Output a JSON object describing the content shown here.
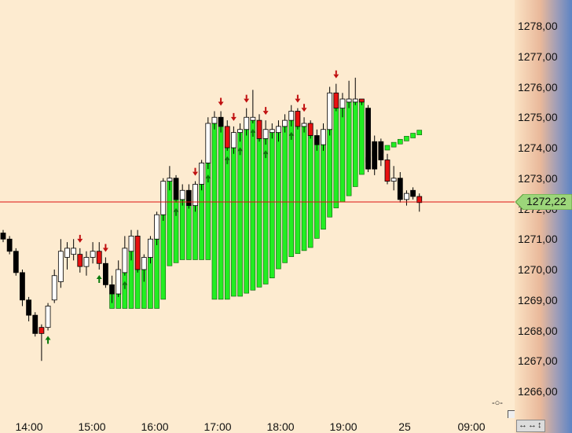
{
  "chart_data": {
    "type": "candlestick",
    "y_axis": {
      "ticks": [
        "1266,00",
        "1267,00",
        "1268,00",
        "1269,00",
        "1270,00",
        "1271,00",
        "1272,00",
        "1273,00",
        "1274,00",
        "1275,00",
        "1276,00",
        "1277,00",
        "1278,00"
      ],
      "range": [
        1265.4,
        1278.7
      ],
      "position": "right"
    },
    "x_axis": {
      "ticks": [
        "14:00",
        "15:00",
        "16:00",
        "17:00",
        "18:00",
        "19:00",
        "25",
        "09:00"
      ]
    },
    "last_price": {
      "label": "1272,22",
      "value": 1272.22
    },
    "colors": {
      "bull": "#ffffff",
      "bear": "#000000",
      "reversal": "#e81010",
      "trail_bar": "#22ee22",
      "arrow_up": "#0a7a0a",
      "arrow_down": "#c01010",
      "price_line": "#dd1111"
    },
    "candles": [
      {
        "o": 1271.2,
        "h": 1271.3,
        "l": 1270.9,
        "c": 1271.0,
        "t": "bear"
      },
      {
        "o": 1271.0,
        "h": 1271.1,
        "l": 1270.5,
        "c": 1270.6,
        "t": "bear"
      },
      {
        "o": 1270.6,
        "h": 1270.7,
        "l": 1269.8,
        "c": 1269.9,
        "t": "bear"
      },
      {
        "o": 1269.9,
        "h": 1270.0,
        "l": 1268.8,
        "c": 1269.0,
        "t": "bear"
      },
      {
        "o": 1269.0,
        "h": 1269.1,
        "l": 1268.3,
        "c": 1268.5,
        "t": "bear"
      },
      {
        "o": 1268.5,
        "h": 1268.6,
        "l": 1267.8,
        "c": 1267.9,
        "t": "bear"
      },
      {
        "o": 1267.9,
        "h": 1268.2,
        "l": 1267.0,
        "c": 1268.1,
        "t": "reversal"
      },
      {
        "o": 1268.1,
        "h": 1268.9,
        "l": 1268.0,
        "c": 1268.8,
        "t": "bull"
      },
      {
        "o": 1269.0,
        "h": 1270.0,
        "l": 1268.9,
        "c": 1269.8,
        "t": "bull"
      },
      {
        "o": 1269.6,
        "h": 1271.0,
        "l": 1269.4,
        "c": 1270.6,
        "t": "bull"
      },
      {
        "o": 1270.4,
        "h": 1270.9,
        "l": 1270.0,
        "c": 1270.7,
        "t": "bull"
      },
      {
        "o": 1270.7,
        "h": 1271.0,
        "l": 1270.3,
        "c": 1270.5,
        "t": "bull"
      },
      {
        "o": 1270.5,
        "h": 1270.7,
        "l": 1269.9,
        "c": 1270.1,
        "t": "reversal"
      },
      {
        "o": 1270.1,
        "h": 1270.6,
        "l": 1269.8,
        "c": 1270.4,
        "t": "bull"
      },
      {
        "o": 1270.4,
        "h": 1270.9,
        "l": 1270.2,
        "c": 1270.6,
        "t": "bull"
      },
      {
        "o": 1270.6,
        "h": 1270.9,
        "l": 1270.0,
        "c": 1270.2,
        "t": "reversal"
      },
      {
        "o": 1270.2,
        "h": 1270.4,
        "l": 1269.4,
        "c": 1269.5,
        "t": "bear"
      },
      {
        "o": 1269.5,
        "h": 1269.8,
        "l": 1268.9,
        "c": 1269.2,
        "t": "bear"
      },
      {
        "o": 1269.2,
        "h": 1270.3,
        "l": 1269.1,
        "c": 1270.0,
        "t": "bull"
      },
      {
        "o": 1269.9,
        "h": 1271.1,
        "l": 1269.8,
        "c": 1270.7,
        "t": "bull"
      },
      {
        "o": 1270.6,
        "h": 1271.3,
        "l": 1270.3,
        "c": 1271.1,
        "t": "bull"
      },
      {
        "o": 1271.1,
        "h": 1271.3,
        "l": 1269.9,
        "c": 1270.0,
        "t": "reversal"
      },
      {
        "o": 1270.0,
        "h": 1270.5,
        "l": 1269.6,
        "c": 1270.4,
        "t": "bull"
      },
      {
        "o": 1270.4,
        "h": 1271.1,
        "l": 1270.2,
        "c": 1271.0,
        "t": "bull"
      },
      {
        "o": 1271.0,
        "h": 1271.9,
        "l": 1270.8,
        "c": 1271.8,
        "t": "bull"
      },
      {
        "o": 1271.8,
        "h": 1273.0,
        "l": 1271.6,
        "c": 1272.9,
        "t": "bull"
      },
      {
        "o": 1272.9,
        "h": 1273.4,
        "l": 1272.6,
        "c": 1273.0,
        "t": "bull"
      },
      {
        "o": 1273.0,
        "h": 1273.1,
        "l": 1272.2,
        "c": 1272.3,
        "t": "bear"
      },
      {
        "o": 1272.3,
        "h": 1272.8,
        "l": 1272.1,
        "c": 1272.6,
        "t": "bull"
      },
      {
        "o": 1272.6,
        "h": 1272.8,
        "l": 1272.0,
        "c": 1272.1,
        "t": "bear"
      },
      {
        "o": 1272.1,
        "h": 1272.9,
        "l": 1271.9,
        "c": 1272.8,
        "t": "bull"
      },
      {
        "o": 1272.8,
        "h": 1273.6,
        "l": 1272.6,
        "c": 1273.5,
        "t": "bull"
      },
      {
        "o": 1273.5,
        "h": 1275.0,
        "l": 1273.3,
        "c": 1274.8,
        "t": "bull"
      },
      {
        "o": 1274.8,
        "h": 1275.2,
        "l": 1274.6,
        "c": 1275.0,
        "t": "bull"
      },
      {
        "o": 1275.0,
        "h": 1275.2,
        "l": 1274.5,
        "c": 1274.7,
        "t": "bear"
      },
      {
        "o": 1274.7,
        "h": 1274.9,
        "l": 1273.9,
        "c": 1274.0,
        "t": "reversal"
      },
      {
        "o": 1274.0,
        "h": 1274.7,
        "l": 1273.8,
        "c": 1274.5,
        "t": "bull"
      },
      {
        "o": 1274.5,
        "h": 1274.8,
        "l": 1274.2,
        "c": 1274.6,
        "t": "bull"
      },
      {
        "o": 1274.6,
        "h": 1275.3,
        "l": 1274.4,
        "c": 1275.0,
        "t": "bull"
      },
      {
        "o": 1275.0,
        "h": 1275.9,
        "l": 1274.8,
        "c": 1274.9,
        "t": "bull"
      },
      {
        "o": 1274.9,
        "h": 1275.1,
        "l": 1274.2,
        "c": 1274.3,
        "t": "reversal"
      },
      {
        "o": 1274.3,
        "h": 1274.9,
        "l": 1274.1,
        "c": 1274.6,
        "t": "bull"
      },
      {
        "o": 1274.6,
        "h": 1274.8,
        "l": 1274.3,
        "c": 1274.5,
        "t": "bull"
      },
      {
        "o": 1274.5,
        "h": 1274.9,
        "l": 1274.2,
        "c": 1274.7,
        "t": "bull"
      },
      {
        "o": 1274.7,
        "h": 1275.1,
        "l": 1274.5,
        "c": 1274.9,
        "t": "bull"
      },
      {
        "o": 1274.9,
        "h": 1275.4,
        "l": 1274.7,
        "c": 1275.2,
        "t": "bull"
      },
      {
        "o": 1275.2,
        "h": 1275.3,
        "l": 1274.6,
        "c": 1274.7,
        "t": "reversal"
      },
      {
        "o": 1274.7,
        "h": 1275.0,
        "l": 1274.5,
        "c": 1274.8,
        "t": "bull"
      },
      {
        "o": 1274.8,
        "h": 1274.9,
        "l": 1274.3,
        "c": 1274.4,
        "t": "reversal"
      },
      {
        "o": 1274.4,
        "h": 1274.6,
        "l": 1273.9,
        "c": 1274.1,
        "t": "bear"
      },
      {
        "o": 1274.1,
        "h": 1274.8,
        "l": 1273.9,
        "c": 1274.6,
        "t": "bull"
      },
      {
        "o": 1274.6,
        "h": 1276.0,
        "l": 1274.4,
        "c": 1275.8,
        "t": "bull"
      },
      {
        "o": 1275.8,
        "h": 1276.1,
        "l": 1275.2,
        "c": 1275.3,
        "t": "reversal"
      },
      {
        "o": 1275.3,
        "h": 1275.8,
        "l": 1275.0,
        "c": 1275.6,
        "t": "bull"
      },
      {
        "o": 1275.6,
        "h": 1276.2,
        "l": 1275.3,
        "c": 1275.5,
        "t": "bull"
      },
      {
        "o": 1275.5,
        "h": 1276.3,
        "l": 1275.4,
        "c": 1275.6,
        "t": "bull"
      },
      {
        "o": 1275.6,
        "h": 1275.6,
        "l": 1275.4,
        "c": 1275.5,
        "t": "reversal"
      },
      {
        "o": 1275.3,
        "h": 1275.4,
        "l": 1273.2,
        "c": 1273.3,
        "t": "bear"
      },
      {
        "o": 1273.3,
        "h": 1274.4,
        "l": 1273.1,
        "c": 1274.2,
        "t": "bear"
      },
      {
        "o": 1274.2,
        "h": 1274.3,
        "l": 1273.4,
        "c": 1273.6,
        "t": "bear"
      },
      {
        "o": 1273.6,
        "h": 1273.8,
        "l": 1272.8,
        "c": 1272.9,
        "t": "reversal"
      },
      {
        "o": 1272.9,
        "h": 1273.4,
        "l": 1272.6,
        "c": 1273.0,
        "t": "bull"
      },
      {
        "o": 1273.0,
        "h": 1273.2,
        "l": 1272.2,
        "c": 1272.3,
        "t": "bear"
      },
      {
        "o": 1272.3,
        "h": 1272.6,
        "l": 1272.1,
        "c": 1272.5,
        "t": "bull"
      },
      {
        "o": 1272.6,
        "h": 1272.7,
        "l": 1272.3,
        "c": 1272.4,
        "t": "bear"
      },
      {
        "o": 1272.4,
        "h": 1272.5,
        "l": 1271.9,
        "c": 1272.2,
        "t": "reversal"
      }
    ],
    "trail_stop": [
      1268.8,
      1268.8,
      1268.8,
      1268.8,
      1268.8,
      1268.8,
      1268.8,
      1268.8,
      1269.1,
      1270.2,
      1270.3,
      1270.4,
      1270.4,
      1270.4,
      1270.4,
      1270.4,
      1269.1,
      1269.1,
      1269.1,
      1269.2,
      1269.2,
      1269.3,
      1269.4,
      1269.5,
      1269.6,
      1269.8,
      1270.1,
      1270.3,
      1270.5,
      1270.6,
      1270.7,
      1270.8,
      1271.1,
      1271.4,
      1271.8,
      1272.1,
      1272.3,
      1272.5,
      1272.8,
      1273.2,
      1273.6,
      1273.8,
      1273.9,
      1274.0,
      1274.1,
      1274.2,
      1274.3,
      1274.4,
      1274.5,
      1274.6,
      1274.7,
      1274.9,
      1275.1,
      1275.3,
      1275.3,
      1275.3,
      1275.3,
      1275.3
    ],
    "arrows_up": [
      7,
      15,
      19,
      27,
      32,
      35,
      37,
      39,
      41,
      45
    ],
    "arrows_down": [
      12,
      16,
      30,
      34,
      36,
      38,
      41,
      46,
      47,
      52
    ]
  },
  "scroll_buttons": "↔↔↕",
  "plot_icon": "-○-"
}
